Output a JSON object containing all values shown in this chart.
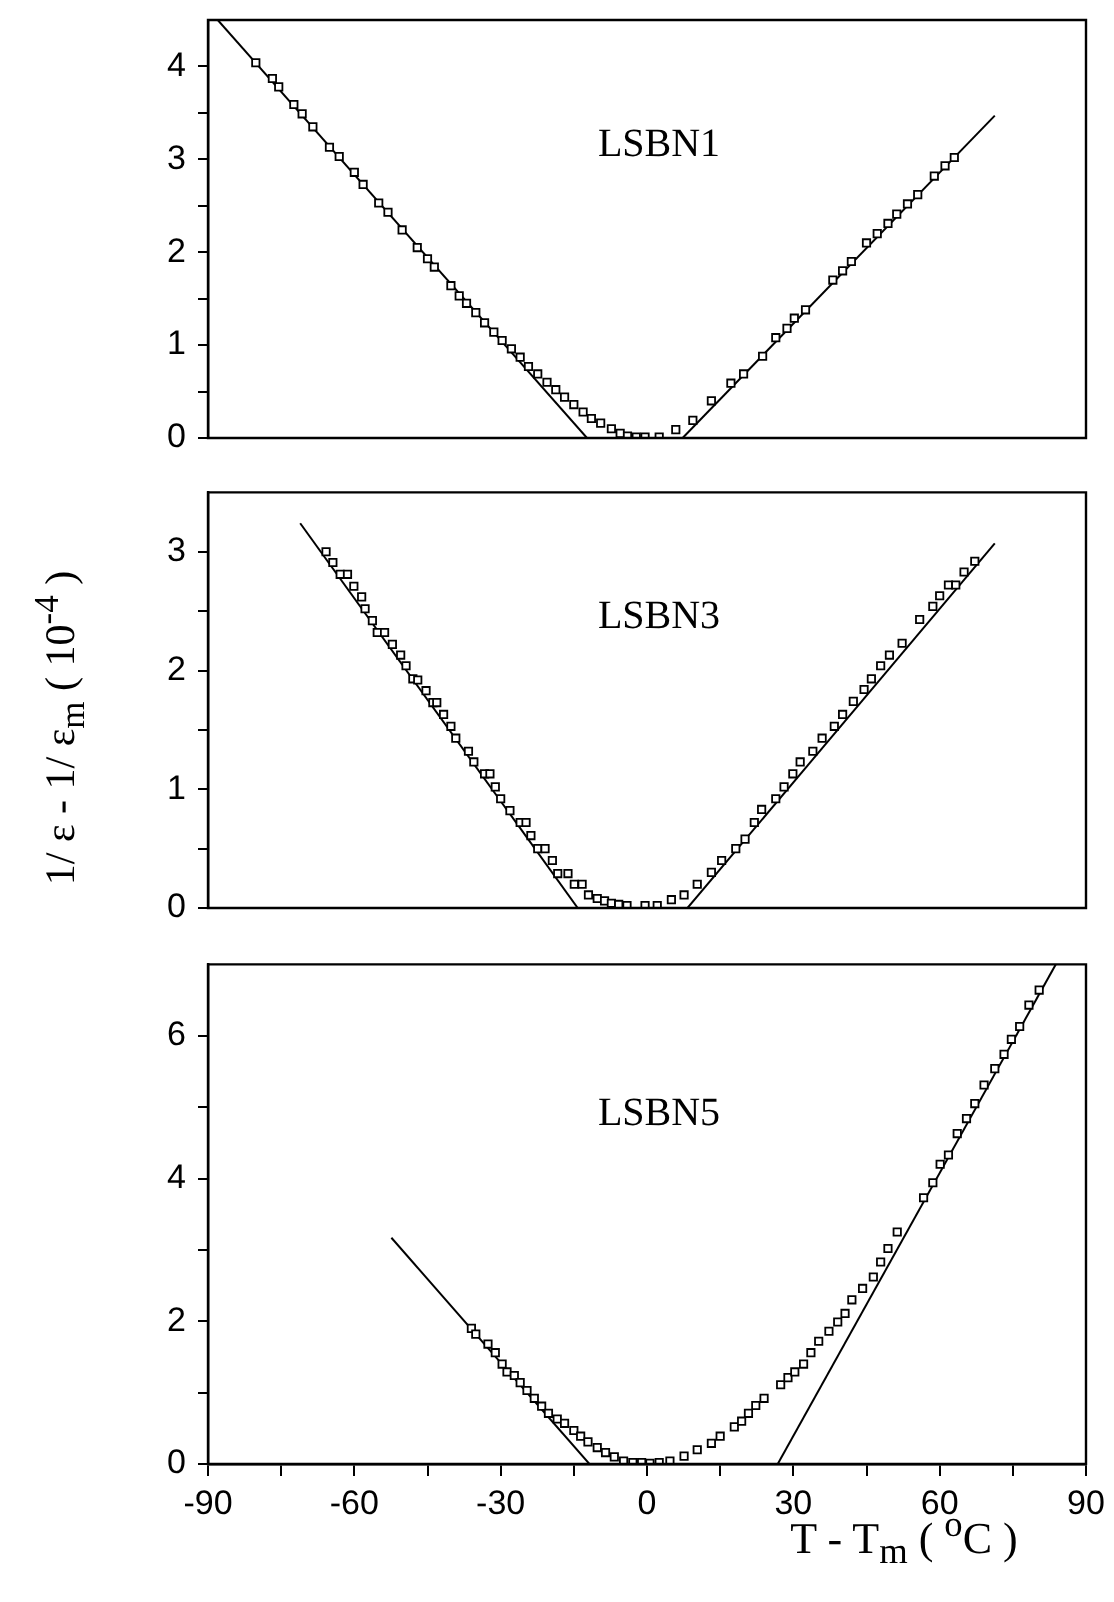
{
  "chart_data": [
    {
      "type": "scatter",
      "annotations": [
        "LSBN1"
      ],
      "xlim": [
        -90,
        90
      ],
      "ylim": [
        0,
        4.5
      ],
      "tick_labels": "y",
      "grid": false,
      "legend": false,
      "yticks": [
        0,
        {
          "value": 0.5,
          "label": null
        },
        1,
        {
          "value": 1.5,
          "label": null
        },
        2,
        {
          "value": 2.5,
          "label": null
        },
        3,
        {
          "value": 3.5,
          "label": null
        },
        4
      ],
      "series": [
        {
          "type": "scatter",
          "marker": "square",
          "color": "#000000",
          "x": [
            -80.2,
            -76.8,
            -75.5,
            -72.4,
            -70.7,
            -68.5,
            -65.1,
            -63.1,
            -60.0,
            -58.2,
            -55.0,
            -53.1,
            -50.2,
            -47.1,
            -45.0,
            -43.6,
            -40.2,
            -38.5,
            -37.0,
            -35.1,
            -33.3,
            -31.4,
            -29.7,
            -27.8,
            -26.0,
            -24.3,
            -22.4,
            -20.5,
            -18.7,
            -16.9,
            -15.0,
            -13.1,
            -11.4,
            -9.5,
            -7.3,
            -5.5,
            -4.0,
            -2.2,
            -0.4,
            2.5,
            5.9,
            9.4,
            13.2,
            17.2,
            19.8,
            23.7,
            26.4,
            28.7,
            30.2,
            32.5,
            38.1,
            40.1,
            41.9,
            45.0,
            47.2,
            49.4,
            51.2,
            53.4,
            55.5,
            58.9,
            61.1,
            63.0
          ],
          "values": [
            4.04,
            3.87,
            3.78,
            3.59,
            3.49,
            3.35,
            3.13,
            3.03,
            2.86,
            2.73,
            2.53,
            2.43,
            2.24,
            2.05,
            1.93,
            1.84,
            1.64,
            1.53,
            1.45,
            1.35,
            1.24,
            1.14,
            1.05,
            0.96,
            0.87,
            0.77,
            0.69,
            0.6,
            0.52,
            0.44,
            0.36,
            0.28,
            0.21,
            0.16,
            0.1,
            0.05,
            0.02,
            0.01,
            0.01,
            0.01,
            0.09,
            0.19,
            0.4,
            0.59,
            0.69,
            0.88,
            1.08,
            1.18,
            1.29,
            1.38,
            1.7,
            1.8,
            1.9,
            2.1,
            2.2,
            2.31,
            2.41,
            2.52,
            2.62,
            2.82,
            2.93,
            3.02
          ]
        },
        {
          "type": "line",
          "marker": "none",
          "line_style": "solid",
          "color": "#000000",
          "x": [
            -88,
            -12.3
          ],
          "values": [
            4.5,
            0
          ]
        },
        {
          "type": "line",
          "marker": "none",
          "line_style": "solid",
          "color": "#000000",
          "x": [
            7.3,
            71.3
          ],
          "values": [
            0,
            3.47
          ]
        }
      ]
    },
    {
      "type": "scatter",
      "annotations": [
        "LSBN3"
      ],
      "ylabel": "1/ ε - 1/ ε$_{m}$  ( 10$^{-4}$ )",
      "xlim": [
        -90,
        90
      ],
      "ylim": [
        0,
        3.5
      ],
      "tick_labels": "y",
      "grid": false,
      "legend": false,
      "yticks": [
        0,
        {
          "value": 0.5,
          "label": null
        },
        1,
        {
          "value": 1.5,
          "label": null
        },
        2,
        {
          "value": 2.5,
          "label": null
        },
        3
      ],
      "series": [
        {
          "type": "scatter",
          "marker": "square",
          "color": "#000000",
          "x": [
            -65.8,
            -64.4,
            -62.9,
            -61.4,
            -60.1,
            -58.5,
            -57.8,
            -56.3,
            -55.3,
            -53.8,
            -52.2,
            -50.5,
            -49.4,
            -48.0,
            -47.0,
            -45.3,
            -43.9,
            -43.1,
            -41.7,
            -40.2,
            -39.2,
            -36.6,
            -35.5,
            -33.3,
            -32.2,
            -31.1,
            -30.0,
            -28.1,
            -26.0,
            -24.8,
            -23.8,
            -22.4,
            -20.9,
            -19.4,
            -18.3,
            -16.2,
            -14.9,
            -13.3,
            -12.0,
            -10.2,
            -8.7,
            -7.3,
            -5.8,
            -4.1,
            -0.4,
            2.1,
            5.0,
            7.6,
            10.3,
            13.2,
            15.3,
            18.2,
            20.1,
            22.0,
            23.5,
            26.4,
            28.1,
            29.9,
            31.4,
            34.0,
            35.9,
            38.4,
            40.1,
            42.3,
            44.5,
            46.0,
            47.9,
            49.7,
            52.3,
            55.9,
            58.6,
            60.0,
            61.8,
            63.3,
            65.0,
            67.2
          ],
          "values": [
            3.0,
            2.91,
            2.81,
            2.81,
            2.71,
            2.62,
            2.52,
            2.42,
            2.32,
            2.32,
            2.22,
            2.13,
            2.04,
            1.93,
            1.92,
            1.83,
            1.73,
            1.73,
            1.63,
            1.53,
            1.43,
            1.32,
            1.23,
            1.13,
            1.13,
            1.02,
            0.92,
            0.82,
            0.72,
            0.72,
            0.61,
            0.5,
            0.5,
            0.4,
            0.29,
            0.29,
            0.2,
            0.2,
            0.11,
            0.08,
            0.06,
            0.04,
            0.03,
            0.02,
            0.02,
            0.02,
            0.07,
            0.11,
            0.2,
            0.3,
            0.4,
            0.5,
            0.58,
            0.72,
            0.83,
            0.92,
            1.02,
            1.13,
            1.23,
            1.32,
            1.43,
            1.53,
            1.63,
            1.74,
            1.84,
            1.93,
            2.04,
            2.13,
            2.23,
            2.43,
            2.54,
            2.63,
            2.72,
            2.72,
            2.83,
            2.92
          ]
        },
        {
          "type": "line",
          "marker": "none",
          "line_style": "solid",
          "color": "#000000",
          "x": [
            -71.1,
            -14.2
          ],
          "values": [
            3.24,
            0
          ]
        },
        {
          "type": "line",
          "marker": "none",
          "line_style": "solid",
          "color": "#000000",
          "x": [
            8.3,
            71.3
          ],
          "values": [
            0,
            3.07
          ]
        }
      ]
    },
    {
      "type": "scatter",
      "annotations": [
        "LSBN5"
      ],
      "xlabel": "T - T$_{m}$ ( $^{o}$C )",
      "xlim": [
        -90,
        90
      ],
      "ylim": [
        0,
        7
      ],
      "grid": false,
      "legend": false,
      "xticks": [
        -90,
        {
          "value": -75,
          "label": null
        },
        -60,
        {
          "value": -45,
          "label": null
        },
        -30,
        {
          "value": -15,
          "label": null
        },
        0,
        {
          "value": 15,
          "label": null
        },
        30,
        {
          "value": 45,
          "label": null
        },
        60,
        {
          "value": 75,
          "label": null
        },
        90
      ],
      "yticks": [
        0,
        {
          "value": 1,
          "label": null
        },
        2,
        {
          "value": 3,
          "label": null
        },
        4,
        {
          "value": 5,
          "label": null
        },
        6
      ],
      "series": [
        {
          "type": "scatter",
          "marker": "square",
          "color": "#000000",
          "x": [
            -36.0,
            -35.1,
            -32.6,
            -31.1,
            -29.7,
            -28.7,
            -27.2,
            -26.0,
            -24.6,
            -23.1,
            -21.6,
            -20.2,
            -18.4,
            -16.9,
            -15.0,
            -13.6,
            -12.1,
            -10.2,
            -8.5,
            -6.7,
            -4.8,
            -2.9,
            -1.1,
            0.6,
            2.5,
            4.7,
            7.6,
            10.3,
            13.2,
            15.0,
            17.9,
            19.4,
            20.8,
            22.3,
            24.0,
            27.4,
            28.9,
            30.3,
            32.1,
            33.6,
            35.2,
            37.3,
            39.1,
            40.6,
            42.0,
            44.2,
            46.4,
            47.9,
            49.4,
            51.3,
            56.7,
            58.6,
            60.1,
            61.8,
            63.6,
            65.5,
            67.2,
            69.1,
            71.3,
            73.2,
            74.7,
            76.4,
            78.3,
            80.4
          ],
          "values": [
            1.9,
            1.82,
            1.68,
            1.56,
            1.4,
            1.29,
            1.24,
            1.14,
            1.03,
            0.92,
            0.81,
            0.71,
            0.63,
            0.57,
            0.47,
            0.39,
            0.31,
            0.23,
            0.16,
            0.1,
            0.04,
            0.02,
            0.02,
            0.01,
            0.02,
            0.04,
            0.11,
            0.2,
            0.29,
            0.39,
            0.52,
            0.6,
            0.71,
            0.82,
            0.92,
            1.11,
            1.21,
            1.29,
            1.4,
            1.56,
            1.72,
            1.86,
            1.99,
            2.11,
            2.3,
            2.46,
            2.62,
            2.83,
            3.02,
            3.25,
            3.73,
            3.94,
            4.2,
            4.33,
            4.63,
            4.84,
            5.05,
            5.31,
            5.54,
            5.74,
            5.95,
            6.13,
            6.43,
            6.64
          ]
        },
        {
          "type": "line",
          "marker": "none",
          "line_style": "solid",
          "color": "#000000",
          "x": [
            -52.4,
            -11.8
          ],
          "values": [
            3.17,
            0
          ]
        },
        {
          "type": "line",
          "marker": "none",
          "line_style": "solid",
          "color": "#000000",
          "x": [
            26.8,
            83.8
          ],
          "values": [
            0,
            7.0
          ]
        }
      ]
    }
  ]
}
